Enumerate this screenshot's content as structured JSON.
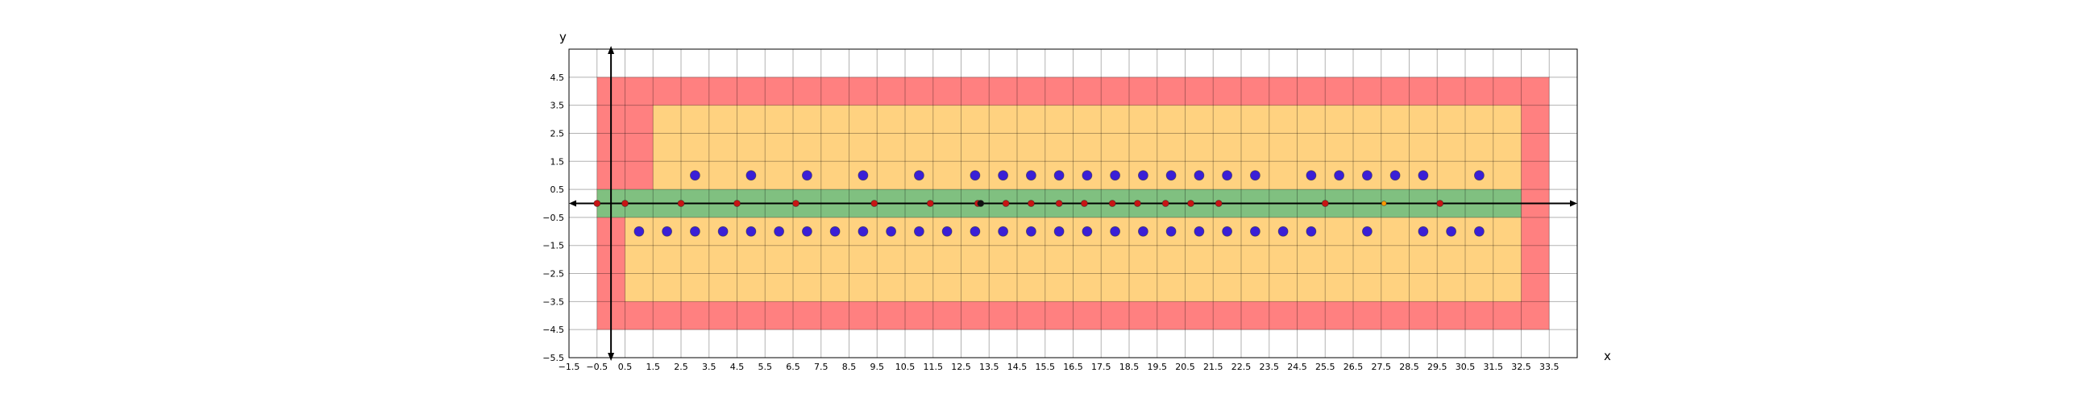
{
  "chart_data": {
    "type": "scatter",
    "title": "",
    "xlabel": "x",
    "ylabel": "y",
    "xlim": [
      -1.5,
      34.5
    ],
    "ylim": [
      -5.5,
      5.5
    ],
    "grid": true,
    "x_ticks": [
      -1.5,
      -0.5,
      0.5,
      1.5,
      2.5,
      3.5,
      4.5,
      5.5,
      6.5,
      7.5,
      8.5,
      9.5,
      10.5,
      11.5,
      12.5,
      13.5,
      14.5,
      15.5,
      16.5,
      17.5,
      18.5,
      19.5,
      20.5,
      21.5,
      22.5,
      23.5,
      24.5,
      25.5,
      26.5,
      27.5,
      28.5,
      29.5,
      30.5,
      31.5,
      32.5,
      33.5
    ],
    "x_tick_labels": [
      "−1.5",
      "−0.5",
      "0.5",
      "1.5",
      "2.5",
      "3.5",
      "4.5",
      "5.5",
      "6.5",
      "7.5",
      "8.5",
      "9.5",
      "10.5",
      "11.5",
      "12.5",
      "13.5",
      "14.5",
      "15.5",
      "16.5",
      "17.5",
      "18.5",
      "19.5",
      "20.5",
      "21.5",
      "22.5",
      "23.5",
      "24.5",
      "25.5",
      "26.5",
      "27.5",
      "28.5",
      "29.5",
      "30.5",
      "31.5",
      "32.5",
      "33.5"
    ],
    "y_ticks": [
      4.5,
      3.5,
      2.5,
      1.5,
      0.5,
      -0.5,
      -1.5,
      -2.5,
      -3.5,
      -4.5,
      -5.5
    ],
    "y_tick_labels": [
      "4.5",
      "3.5",
      "2.5",
      "1.5",
      "0.5",
      "−0.5",
      "−1.5",
      "−2.5",
      "−3.5",
      "−4.5",
      "−5.5"
    ],
    "regions": [
      {
        "color": "#ff8080",
        "polygon": [
          [
            -0.5,
            -4.5
          ],
          [
            33.5,
            -4.5
          ],
          [
            33.5,
            4.5
          ],
          [
            -0.5,
            4.5
          ]
        ]
      },
      {
        "color": "#ffd280",
        "polygon": [
          [
            0.5,
            -3.5
          ],
          [
            32.5,
            -3.5
          ],
          [
            32.5,
            3.5
          ],
          [
            1.5,
            3.5
          ],
          [
            1.5,
            0.5
          ],
          [
            -0.5,
            0.5
          ],
          [
            -0.5,
            -0.5
          ],
          [
            0.5,
            -0.5
          ]
        ]
      },
      {
        "color": "#80c080",
        "polygon": [
          [
            -0.5,
            -0.5
          ],
          [
            32.5,
            -0.5
          ],
          [
            32.5,
            0.5
          ],
          [
            -0.5,
            0.5
          ]
        ]
      }
    ],
    "series": [
      {
        "color": "#3a1fd6",
        "marker_size": 10,
        "points": [
          [
            3,
            1
          ],
          [
            5,
            1
          ],
          [
            7,
            1
          ],
          [
            9,
            1
          ],
          [
            11,
            1
          ],
          [
            13,
            1
          ],
          [
            14,
            1
          ],
          [
            15,
            1
          ],
          [
            16,
            1
          ],
          [
            17,
            1
          ],
          [
            18,
            1
          ],
          [
            19,
            1
          ],
          [
            20,
            1
          ],
          [
            21,
            1
          ],
          [
            22,
            1
          ],
          [
            23,
            1
          ],
          [
            25,
            1
          ],
          [
            26,
            1
          ],
          [
            27,
            1
          ],
          [
            28,
            1
          ],
          [
            29,
            1
          ],
          [
            31,
            1
          ],
          [
            1,
            -1
          ],
          [
            2,
            -1
          ],
          [
            3,
            -1
          ],
          [
            4,
            -1
          ],
          [
            5,
            -1
          ],
          [
            6,
            -1
          ],
          [
            7,
            -1
          ],
          [
            8,
            -1
          ],
          [
            9,
            -1
          ],
          [
            10,
            -1
          ],
          [
            11,
            -1
          ],
          [
            12,
            -1
          ],
          [
            13,
            -1
          ],
          [
            14,
            -1
          ],
          [
            15,
            -1
          ],
          [
            16,
            -1
          ],
          [
            17,
            -1
          ],
          [
            18,
            -1
          ],
          [
            19,
            -1
          ],
          [
            20,
            -1
          ],
          [
            21,
            -1
          ],
          [
            22,
            -1
          ],
          [
            23,
            -1
          ],
          [
            24,
            -1
          ],
          [
            25,
            -1
          ],
          [
            27,
            -1
          ],
          [
            29,
            -1
          ],
          [
            30,
            -1
          ],
          [
            31,
            -1
          ]
        ]
      },
      {
        "color": "#c81414",
        "marker_size": 6,
        "points": [
          [
            -0.5,
            0
          ],
          [
            0.5,
            0
          ],
          [
            2.5,
            0
          ],
          [
            4.5,
            0
          ],
          [
            6.6,
            0
          ],
          [
            9.4,
            0
          ],
          [
            11.4,
            0
          ],
          [
            13.1,
            0
          ],
          [
            14.1,
            0
          ],
          [
            15,
            0
          ],
          [
            16,
            0
          ],
          [
            16.9,
            0
          ],
          [
            17.9,
            0
          ],
          [
            18.8,
            0
          ],
          [
            19.8,
            0
          ],
          [
            20.7,
            0
          ],
          [
            21.7,
            0
          ],
          [
            25.5,
            0
          ],
          [
            29.6,
            0
          ]
        ]
      },
      {
        "color": "#111111",
        "marker_size": 6,
        "points": [
          [
            13.2,
            0
          ]
        ]
      },
      {
        "color": "#ff9900",
        "marker_size": 4,
        "points": [
          [
            27.6,
            0
          ]
        ]
      }
    ]
  }
}
